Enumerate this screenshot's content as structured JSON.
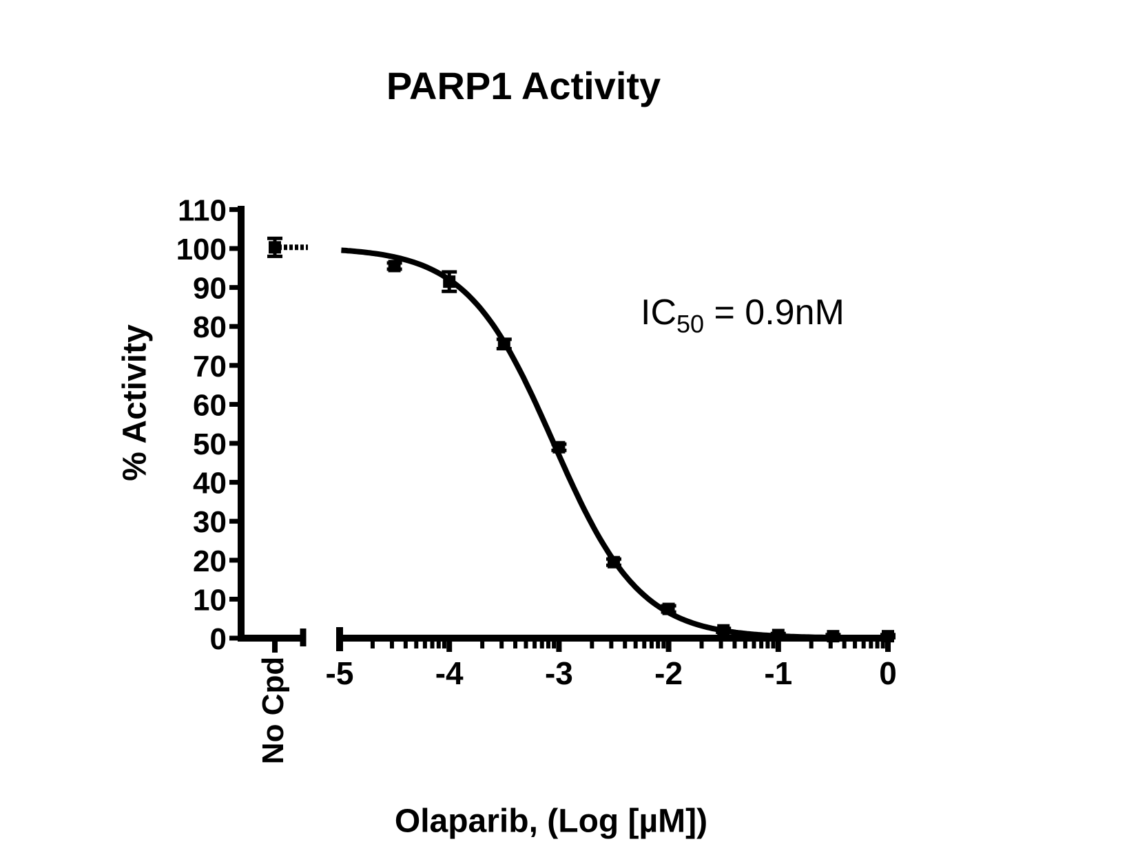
{
  "figure": {
    "ink_color": "#000000",
    "background_color": "#FFFFFF",
    "annotation": {
      "prefix": "IC",
      "sub": "50",
      "rest": " = 0.9nM"
    }
  },
  "chart_data": {
    "type": "scatter",
    "title": "PARP1 Activity",
    "xlabel": "Olaparib, (Log [µM])",
    "ylabel": "% Activity",
    "annotation_text": "IC50 = 0.9nM",
    "legend": "none",
    "grid": false,
    "x_axis": {
      "title": "Olaparib, (Log [µM])",
      "scale": "log10",
      "min": -5,
      "max": 0,
      "major_ticks": [
        -5,
        -4,
        -3,
        -2,
        -1,
        0
      ],
      "tick_labels": [
        "-5",
        "-4",
        "-3",
        "-2",
        "-1",
        "0"
      ],
      "minor_ticks": "log-spaced at d+log10(k), k=2..9, for each decade d from -5 to -1",
      "axis_break_before_data": true
    },
    "y_axis": {
      "title": "% Activity",
      "min": 0,
      "max": 110,
      "tick_step": 10,
      "ticks": [
        0,
        10,
        20,
        30,
        40,
        50,
        60,
        70,
        80,
        90,
        100,
        110
      ],
      "tick_labels": [
        "0",
        "10",
        "20",
        "30",
        "40",
        "50",
        "60",
        "70",
        "80",
        "90",
        "100",
        "110"
      ]
    },
    "no_compound_point": {
      "label": "No Cpd",
      "activity": 100.3,
      "error": 2.3
    },
    "points": [
      {
        "log_uM": -4.5,
        "activity": 95.5,
        "error": 0.8
      },
      {
        "log_uM": -4.0,
        "activity": 91.5,
        "error": 2.5
      },
      {
        "log_uM": -3.5,
        "activity": 75.5,
        "error": 1.2
      },
      {
        "log_uM": -3.0,
        "activity": 49.0,
        "error": 0.8
      },
      {
        "log_uM": -2.5,
        "activity": 19.5,
        "error": 0.8
      },
      {
        "log_uM": -2.0,
        "activity": 7.5,
        "error": 0.8
      },
      {
        "log_uM": -1.5,
        "activity": 2.0,
        "error": 0.5
      },
      {
        "log_uM": -1.0,
        "activity": 0.8,
        "error": 0.4
      },
      {
        "log_uM": -0.5,
        "activity": 0.5,
        "error": 0.4
      },
      {
        "log_uM": 0.0,
        "activity": 0.5,
        "error": 0.4
      }
    ],
    "fit": {
      "model": "sigmoidal dose-response (4PL)",
      "top": 100.3,
      "bottom": 0,
      "hill_slope": -1.1,
      "log_ic50": -3.05,
      "ic50_value_nM": 0.9
    }
  }
}
